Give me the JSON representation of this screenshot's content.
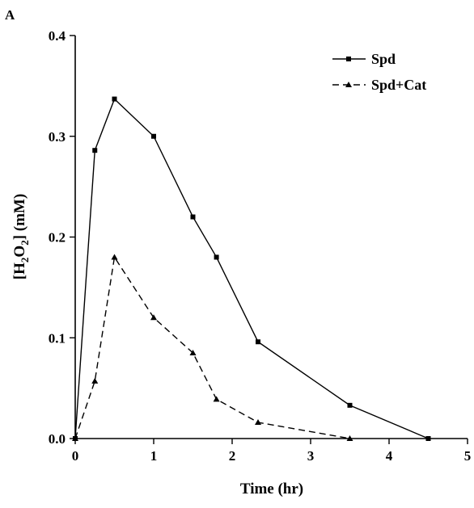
{
  "chart_data": {
    "type": "line",
    "panel_label": "A",
    "xlabel": "Time (hr)",
    "ylabel": {
      "prefix": "[H",
      "sub1": "2",
      "mid": "O",
      "sub2": "2",
      "suffix": "] (mM)"
    },
    "xlim": [
      0,
      5
    ],
    "ylim": [
      0,
      0.4
    ],
    "x_ticks": [
      0,
      1,
      2,
      3,
      4,
      5
    ],
    "x_tick_labels": [
      "0",
      "1",
      "2",
      "3",
      "4",
      "5"
    ],
    "y_ticks": [
      0,
      0.1,
      0.2,
      0.3,
      0.4
    ],
    "y_tick_labels": [
      "0.0",
      "0.1",
      "0.2",
      "0.3",
      "0.4"
    ],
    "grid": false,
    "legend_position": "top-right",
    "series": [
      {
        "name": "Spd",
        "line": "solid",
        "marker": "square",
        "color": "#000000",
        "x": [
          0,
          0.25,
          0.5,
          1,
          1.5,
          1.8,
          2.33,
          3.5,
          4.5
        ],
        "y": [
          0,
          0.286,
          0.337,
          0.3,
          0.22,
          0.18,
          0.096,
          0.033,
          0
        ]
      },
      {
        "name": "Spd+Cat",
        "line": "dashed",
        "marker": "triangle",
        "color": "#000000",
        "x": [
          0,
          0.25,
          0.5,
          1,
          1.5,
          1.8,
          2.33,
          3.5
        ],
        "y": [
          0,
          0.057,
          0.18,
          0.12,
          0.085,
          0.039,
          0.016,
          0
        ]
      }
    ]
  }
}
